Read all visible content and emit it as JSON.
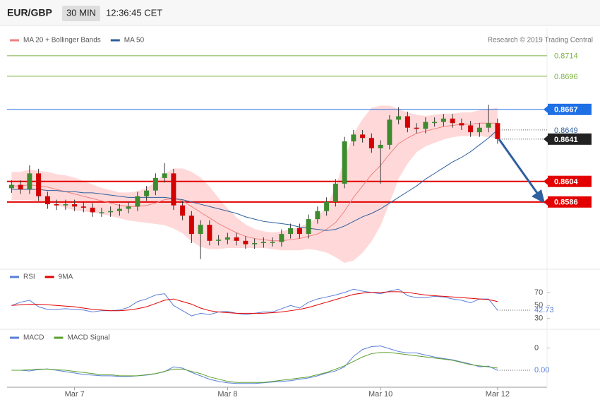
{
  "header": {
    "symbol": "EUR/GBP",
    "timeframe": "30 MIN",
    "time": "12:36:45 CET"
  },
  "chart_data": [
    {
      "type": "candlestick",
      "copyright": "Research © 2019 Trading Central",
      "categories": [
        null,
        null,
        null,
        null,
        null,
        null,
        null,
        "Mar 7",
        null,
        null,
        null,
        null,
        null,
        null,
        null,
        null,
        null,
        null,
        null,
        null,
        null,
        null,
        null,
        null,
        "Mar 8",
        null,
        null,
        null,
        null,
        null,
        null,
        null,
        null,
        null,
        null,
        null,
        null,
        null,
        null,
        null,
        null,
        "Mar 10",
        null,
        null,
        null,
        null,
        null,
        null,
        null,
        null,
        null,
        null,
        null,
        null,
        "Mar 12"
      ],
      "open": [
        0.8598,
        0.8601,
        0.8597,
        0.8611,
        0.8591,
        0.8584,
        0.8583,
        0.8584,
        0.8582,
        0.8581,
        0.8577,
        0.8577,
        0.8578,
        0.858,
        0.8582,
        0.8591,
        0.8596,
        0.8607,
        0.8611,
        0.8583,
        0.8574,
        0.8558,
        0.8566,
        0.8552,
        0.8553,
        0.8555,
        0.8552,
        0.8549,
        0.855,
        0.8551,
        0.8551,
        0.8558,
        0.8563,
        0.8558,
        0.8571,
        0.8578,
        0.8586,
        0.8602,
        0.8639,
        0.8645,
        0.8642,
        0.8633,
        0.8636,
        0.8658,
        0.8661,
        0.8651,
        0.865,
        0.8656,
        0.8656,
        0.8659,
        0.8655,
        0.8653,
        0.8647,
        0.8651,
        0.8655
      ],
      "high": [
        0.8605,
        0.8605,
        0.8618,
        0.8615,
        0.8595,
        0.8588,
        0.8588,
        0.8588,
        0.8586,
        0.8585,
        0.8581,
        0.8582,
        0.8584,
        0.8586,
        0.8595,
        0.86,
        0.8611,
        0.862,
        0.8615,
        0.8587,
        0.8578,
        0.857,
        0.857,
        0.8557,
        0.8559,
        0.8559,
        0.8556,
        0.8554,
        0.8555,
        0.8555,
        0.8562,
        0.8567,
        0.8567,
        0.8575,
        0.8582,
        0.859,
        0.8606,
        0.8643,
        0.8649,
        0.8649,
        0.8646,
        0.864,
        0.8662,
        0.8669,
        0.8665,
        0.8655,
        0.866,
        0.866,
        0.8663,
        0.8663,
        0.8659,
        0.8657,
        0.8655,
        0.8671,
        0.8659
      ],
      "low": [
        0.8594,
        0.8593,
        0.8593,
        0.8587,
        0.858,
        0.8579,
        0.8579,
        0.8578,
        0.8577,
        0.8573,
        0.8573,
        0.8573,
        0.8574,
        0.8576,
        0.8578,
        0.8587,
        0.8592,
        0.8603,
        0.8579,
        0.857,
        0.855,
        0.8536,
        0.8548,
        0.8548,
        0.8549,
        0.8548,
        0.8545,
        0.8545,
        0.8546,
        0.8547,
        0.8547,
        0.8554,
        0.8554,
        0.8554,
        0.8567,
        0.8574,
        0.8582,
        0.8598,
        0.8635,
        0.8638,
        0.8629,
        0.8602,
        0.8632,
        0.8654,
        0.8647,
        0.8646,
        0.8646,
        0.8652,
        0.8652,
        0.8651,
        0.8649,
        0.8643,
        0.8643,
        0.8647,
        0.8637
      ],
      "close": [
        0.8601,
        0.8597,
        0.8611,
        0.8591,
        0.8584,
        0.8583,
        0.8584,
        0.8582,
        0.8581,
        0.8577,
        0.8577,
        0.8578,
        0.858,
        0.8582,
        0.8591,
        0.8596,
        0.8607,
        0.8611,
        0.8583,
        0.8574,
        0.8558,
        0.8566,
        0.8552,
        0.8553,
        0.8555,
        0.8552,
        0.8549,
        0.855,
        0.8551,
        0.8551,
        0.8558,
        0.8563,
        0.8558,
        0.8571,
        0.8578,
        0.8586,
        0.8602,
        0.8639,
        0.8645,
        0.8642,
        0.8633,
        0.8636,
        0.8658,
        0.8661,
        0.8651,
        0.865,
        0.8656,
        0.8656,
        0.8659,
        0.8655,
        0.8653,
        0.8647,
        0.8651,
        0.8655,
        0.8641
      ],
      "up_color": "#3d8b2f",
      "down_color": "#d40000",
      "wick_color": "#333333",
      "series": [
        {
          "name": "MA 20 + Bollinger Bands",
          "color": "#f08080",
          "band_color": "#ffd9d9",
          "values": [
            0.86,
            0.86,
            0.8601,
            0.86,
            0.8599,
            0.8597,
            0.8595,
            0.8593,
            0.8591,
            0.8589,
            0.8587,
            0.8585,
            0.8583,
            0.8582,
            0.8582,
            0.8583,
            0.8585,
            0.8588,
            0.8589,
            0.8587,
            0.8582,
            0.8577,
            0.8572,
            0.8567,
            0.8563,
            0.8559,
            0.8556,
            0.8554,
            0.8553,
            0.8552,
            0.8552,
            0.8553,
            0.8554,
            0.8556,
            0.8558,
            0.8562,
            0.8568,
            0.8578,
            0.859,
            0.86,
            0.861,
            0.8618,
            0.8628,
            0.8637,
            0.8642,
            0.8646,
            0.8648,
            0.865,
            0.8652,
            0.8653,
            0.8654,
            0.8654,
            0.8655,
            0.8655,
            0.8655
          ],
          "upper": [
            0.8612,
            0.8612,
            0.8614,
            0.8613,
            0.8612,
            0.861,
            0.8609,
            0.8607,
            0.8604,
            0.8601,
            0.8598,
            0.8596,
            0.8594,
            0.8594,
            0.8595,
            0.8598,
            0.8603,
            0.861,
            0.8615,
            0.8615,
            0.8612,
            0.8607,
            0.8599,
            0.8589,
            0.858,
            0.8572,
            0.8566,
            0.8562,
            0.856,
            0.8559,
            0.856,
            0.8562,
            0.8564,
            0.8567,
            0.8572,
            0.8582,
            0.8598,
            0.8623,
            0.8645,
            0.8658,
            0.8668,
            0.867,
            0.867,
            0.8667,
            0.8664,
            0.8662,
            0.8661,
            0.8662,
            0.8663,
            0.8663,
            0.8664,
            0.8664,
            0.8666,
            0.8667,
            0.8668
          ],
          "lower": [
            0.8588,
            0.8588,
            0.8588,
            0.8587,
            0.8586,
            0.8584,
            0.8581,
            0.8579,
            0.8578,
            0.8577,
            0.8576,
            0.8574,
            0.8572,
            0.857,
            0.8569,
            0.8568,
            0.8567,
            0.8566,
            0.8563,
            0.8559,
            0.8552,
            0.8547,
            0.8545,
            0.8545,
            0.8546,
            0.8546,
            0.8546,
            0.8546,
            0.8546,
            0.8545,
            0.8544,
            0.8544,
            0.8544,
            0.8545,
            0.8544,
            0.8542,
            0.8538,
            0.8533,
            0.8535,
            0.8542,
            0.8552,
            0.8566,
            0.8586,
            0.8607,
            0.862,
            0.863,
            0.8635,
            0.8638,
            0.8641,
            0.8643,
            0.8644,
            0.8644,
            0.8644,
            0.8643,
            0.8642
          ]
        },
        {
          "name": "MA 50",
          "color": "#2f5f9e",
          "values": [
            0.8597,
            0.8597,
            0.8597,
            0.8597,
            0.8596,
            0.8596,
            0.8595,
            0.8595,
            0.8594,
            0.8594,
            0.8593,
            0.8592,
            0.8591,
            0.859,
            0.859,
            0.859,
            0.859,
            0.859,
            0.8589,
            0.8588,
            0.8586,
            0.8584,
            0.8582,
            0.858,
            0.8578,
            0.8576,
            0.8573,
            0.8571,
            0.8569,
            0.8568,
            0.8567,
            0.8566,
            0.8564,
            0.8563,
            0.8562,
            0.8561,
            0.8562,
            0.8565,
            0.8569,
            0.8573,
            0.8576,
            0.858,
            0.8585,
            0.859,
            0.8595,
            0.86,
            0.8606,
            0.8611,
            0.8616,
            0.8621,
            0.8625,
            0.863,
            0.8636,
            0.8642,
            0.8649
          ]
        }
      ],
      "ylim": [
        0.8529,
        0.8738
      ],
      "levels": [
        {
          "value": 0.8714,
          "color": "#7cb342",
          "box": false
        },
        {
          "value": 0.8696,
          "color": "#7cb342",
          "box": false
        },
        {
          "value": 0.8667,
          "color": "#1f6fe5",
          "box": true
        },
        {
          "value": 0.8604,
          "color": "#e30000",
          "box": true
        },
        {
          "value": 0.8586,
          "color": "#e30000",
          "box": true
        }
      ]
    },
    {
      "type": "line",
      "series": [
        {
          "name": "RSI",
          "color": "#5b7fd8",
          "values": [
            50,
            55,
            58,
            48,
            44,
            44,
            45,
            44,
            43,
            40,
            42,
            42,
            43,
            47,
            56,
            60,
            66,
            68,
            50,
            42,
            34,
            38,
            36,
            40,
            41,
            38,
            36,
            38,
            40,
            40,
            45,
            50,
            46,
            55,
            60,
            63,
            66,
            70,
            75,
            72,
            70,
            68,
            72,
            75,
            65,
            62,
            62,
            64,
            63,
            60,
            58,
            54,
            60,
            60,
            42.73
          ]
        },
        {
          "name": "9MA",
          "color": "#e30000",
          "values": [
            50,
            51,
            52,
            52,
            51,
            50,
            49,
            48,
            46,
            44,
            43,
            42,
            42,
            43,
            45,
            48,
            53,
            58,
            60,
            56,
            52,
            46,
            42,
            40,
            39,
            38,
            38,
            38,
            38,
            39,
            40,
            42,
            44,
            47,
            51,
            55,
            59,
            63,
            67,
            69,
            70,
            70,
            71,
            71,
            70,
            68,
            66,
            65,
            64,
            63,
            62,
            61,
            60,
            59,
            56
          ]
        }
      ],
      "ylim": [
        20,
        85
      ],
      "yticks": [
        30,
        50,
        70
      ]
    },
    {
      "type": "line",
      "series": [
        {
          "name": "MACD",
          "color": "#5b7fd8",
          "values": [
            -0.002,
            -0.002,
            -0.00206,
            -0.00194,
            -0.00188,
            -0.002,
            -0.00213,
            -0.00225,
            -0.00238,
            -0.00244,
            -0.0025,
            -0.0025,
            -0.00256,
            -0.00256,
            -0.0025,
            -0.00244,
            -0.00231,
            -0.00213,
            -0.00169,
            -0.00181,
            -0.00219,
            -0.0025,
            -0.00281,
            -0.003,
            -0.00313,
            -0.00319,
            -0.00319,
            -0.00319,
            -0.00313,
            -0.00306,
            -0.003,
            -0.00294,
            -0.00281,
            -0.00269,
            -0.0025,
            -0.00225,
            -0.00206,
            -0.00169,
            -0.00075,
            -0.00013,
            0.00013,
            0.00019,
            -6e-05,
            -0.00031,
            -0.00044,
            -0.00044,
            -0.00063,
            -0.00081,
            -0.00094,
            -0.00106,
            -0.00125,
            -0.00144,
            -0.00169,
            -0.00163,
            -0.002
          ],
          "value_labels": [
            null,
            null,
            null,
            null,
            null,
            null,
            null,
            null,
            null,
            null,
            null,
            null,
            null,
            null,
            null,
            null,
            null,
            null,
            null,
            null,
            null,
            null,
            null,
            null,
            null,
            null,
            null,
            null,
            null,
            null,
            null,
            null,
            null,
            null,
            null,
            null,
            null,
            null,
            null,
            null,
            null,
            null,
            null,
            null,
            null,
            null,
            null,
            null,
            null,
            null,
            null,
            null,
            null,
            null,
            "0.00"
          ]
        },
        {
          "name": "MACD Signal",
          "color": "#5aa02c",
          "values": [
            -0.002,
            -0.002,
            -0.00195,
            -0.0019,
            -0.0019,
            -0.00195,
            -0.002,
            -0.0021,
            -0.0022,
            -0.0023,
            -0.0024,
            -0.0024,
            -0.0025,
            -0.0025,
            -0.0025,
            -0.0024,
            -0.0023,
            -0.0021,
            -0.0019,
            -0.0019,
            -0.0021,
            -0.0023,
            -0.0026,
            -0.0028,
            -0.003,
            -0.0031,
            -0.0031,
            -0.0031,
            -0.0031,
            -0.003,
            -0.0029,
            -0.0028,
            -0.0027,
            -0.0026,
            -0.0024,
            -0.0022,
            -0.0019,
            -0.0016,
            -0.0012,
            -0.0008,
            -0.0005,
            -0.0004,
            -0.0004,
            -0.0005,
            -0.0006,
            -0.0007,
            -0.0008,
            -0.0009,
            -0.001,
            -0.0011,
            -0.0013,
            -0.0015,
            -0.0016,
            -0.0017,
            -0.0018
          ]
        }
      ],
      "ylim": [
        -0.0034,
        0.0008
      ],
      "yticks": [
        0
      ]
    }
  ]
}
